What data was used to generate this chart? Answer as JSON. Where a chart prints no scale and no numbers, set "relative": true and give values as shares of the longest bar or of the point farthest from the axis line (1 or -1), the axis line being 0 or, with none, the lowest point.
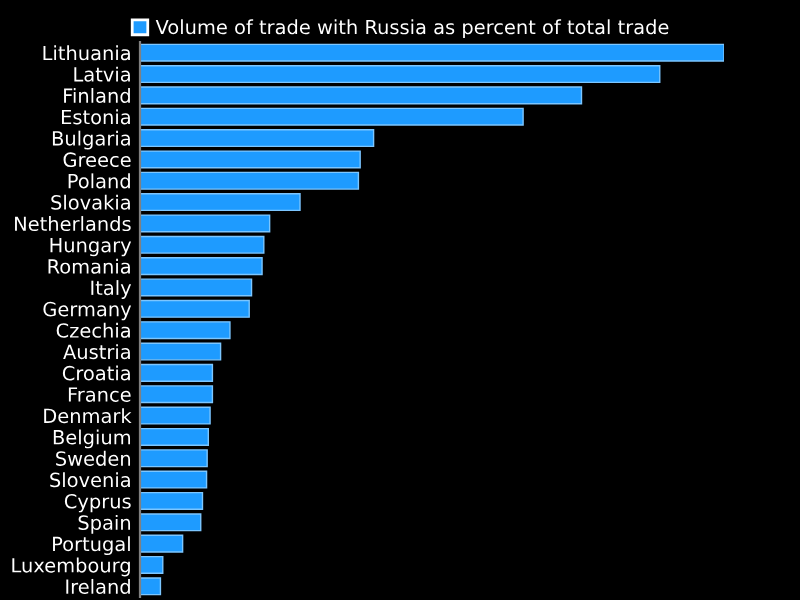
{
  "chart_data": {
    "type": "bar",
    "orientation": "horizontal",
    "relative": true,
    "legend": "top left",
    "categories": [
      "Lithuania",
      "Latvia",
      "Finland",
      "Estonia",
      "Bulgaria",
      "Greece",
      "Poland",
      "Slovakia",
      "Netherlands",
      "Hungary",
      "Romania",
      "Italy",
      "Germany",
      "Czechia",
      "Austria",
      "Croatia",
      "France",
      "Denmark",
      "Belgium",
      "Sweden",
      "Slovenia",
      "Cyprus",
      "Spain",
      "Portugal",
      "Luxembourg",
      "Ireland"
    ],
    "series": [
      {
        "name": "Volume of trade with Russia as percent of total trade",
        "color": "#1e9bff",
        "values": [
          1,
          0.89,
          0.756,
          0.656,
          0.4,
          0.377,
          0.374,
          0.274,
          0.222,
          0.212,
          0.209,
          0.191,
          0.187,
          0.154,
          0.138,
          0.124,
          0.124,
          0.12,
          0.117,
          0.115,
          0.114,
          0.107,
          0.104,
          0.073,
          0.039,
          0.035
        ]
      }
    ]
  }
}
